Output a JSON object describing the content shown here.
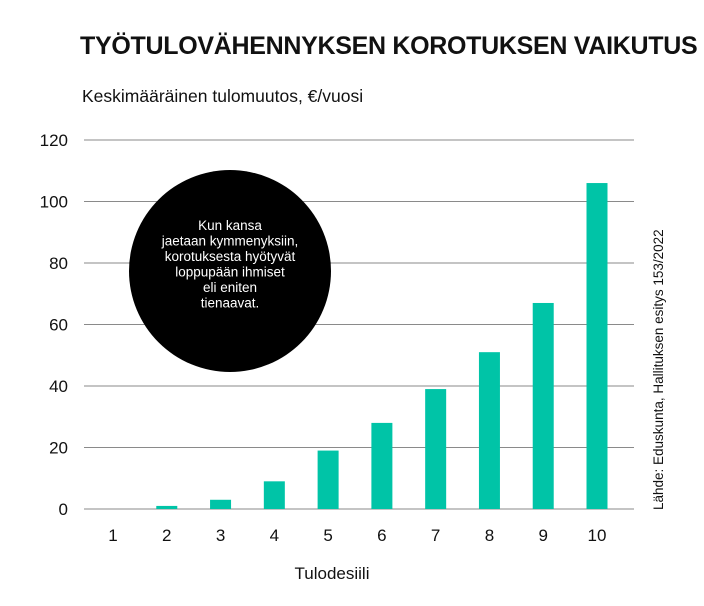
{
  "chart_data": {
    "type": "bar",
    "title": "TYÖTULOVÄHENNYKSEN KOROTUKSEN VAIKUTUS",
    "subtitle": "Keskimääräinen tulomuutos, €/vuosi",
    "xlabel": "Tulodesiili",
    "ylabel": "",
    "categories": [
      "1",
      "2",
      "3",
      "4",
      "5",
      "6",
      "7",
      "8",
      "9",
      "10"
    ],
    "values": [
      0,
      1,
      3,
      9,
      19,
      28,
      39,
      51,
      67,
      106
    ],
    "ylim": [
      0,
      120
    ],
    "yticks": [
      0,
      20,
      40,
      60,
      80,
      100,
      120
    ],
    "grid": true,
    "bar_color": "#00c4a7",
    "annotation": [
      "Kun kansa",
      "jaetaan kymmenyksiin,",
      "korotuksesta hyötyvät",
      "loppupään ihmiset",
      "eli eniten",
      "tienaavat."
    ],
    "source": "Lähde: Eduskunta, Hallituksen esitys 153/2022"
  }
}
